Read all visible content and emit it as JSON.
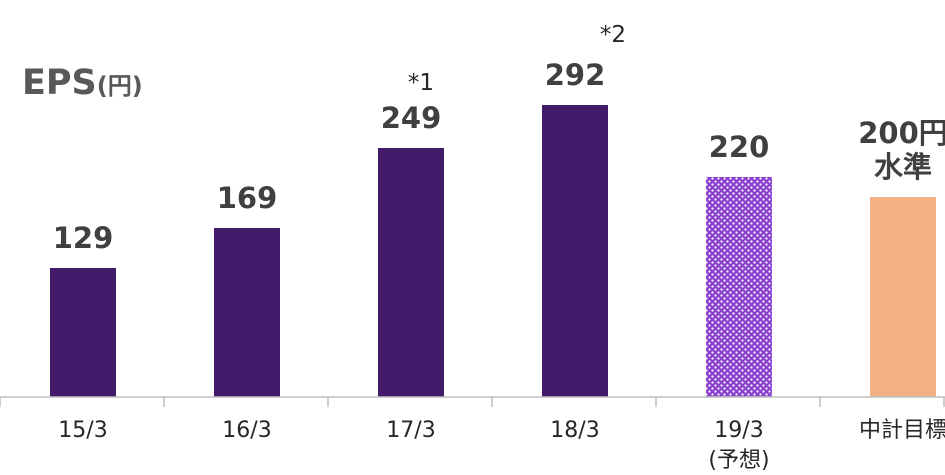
{
  "chart_data": {
    "type": "bar",
    "title": "EPS",
    "title_unit": "(円)",
    "categories": [
      "15/3",
      "16/3",
      "17/3",
      "18/3",
      "19/3",
      "中計目標"
    ],
    "category_sublabels": [
      "",
      "",
      "",
      "",
      "(予想)",
      ""
    ],
    "values": [
      129,
      169,
      249,
      292,
      220,
      200
    ],
    "value_labels": [
      [
        "129"
      ],
      [
        "169"
      ],
      [
        "249"
      ],
      [
        "292"
      ],
      [
        "220"
      ],
      [
        "200円",
        "水準"
      ]
    ],
    "notes": [
      "",
      "",
      "*1",
      "*2",
      "",
      ""
    ],
    "bar_styles": [
      "solid",
      "solid",
      "solid",
      "solid",
      "dotted",
      "solid"
    ],
    "colors": {
      "actual": "#421B6B",
      "forecast": "#8A3FD1",
      "forecast_dots": "#FFFFFF",
      "target": "#F4B183",
      "axis": "#BFBFBF"
    },
    "ylim": [
      0,
      320
    ],
    "grid": false,
    "legend": "none"
  }
}
